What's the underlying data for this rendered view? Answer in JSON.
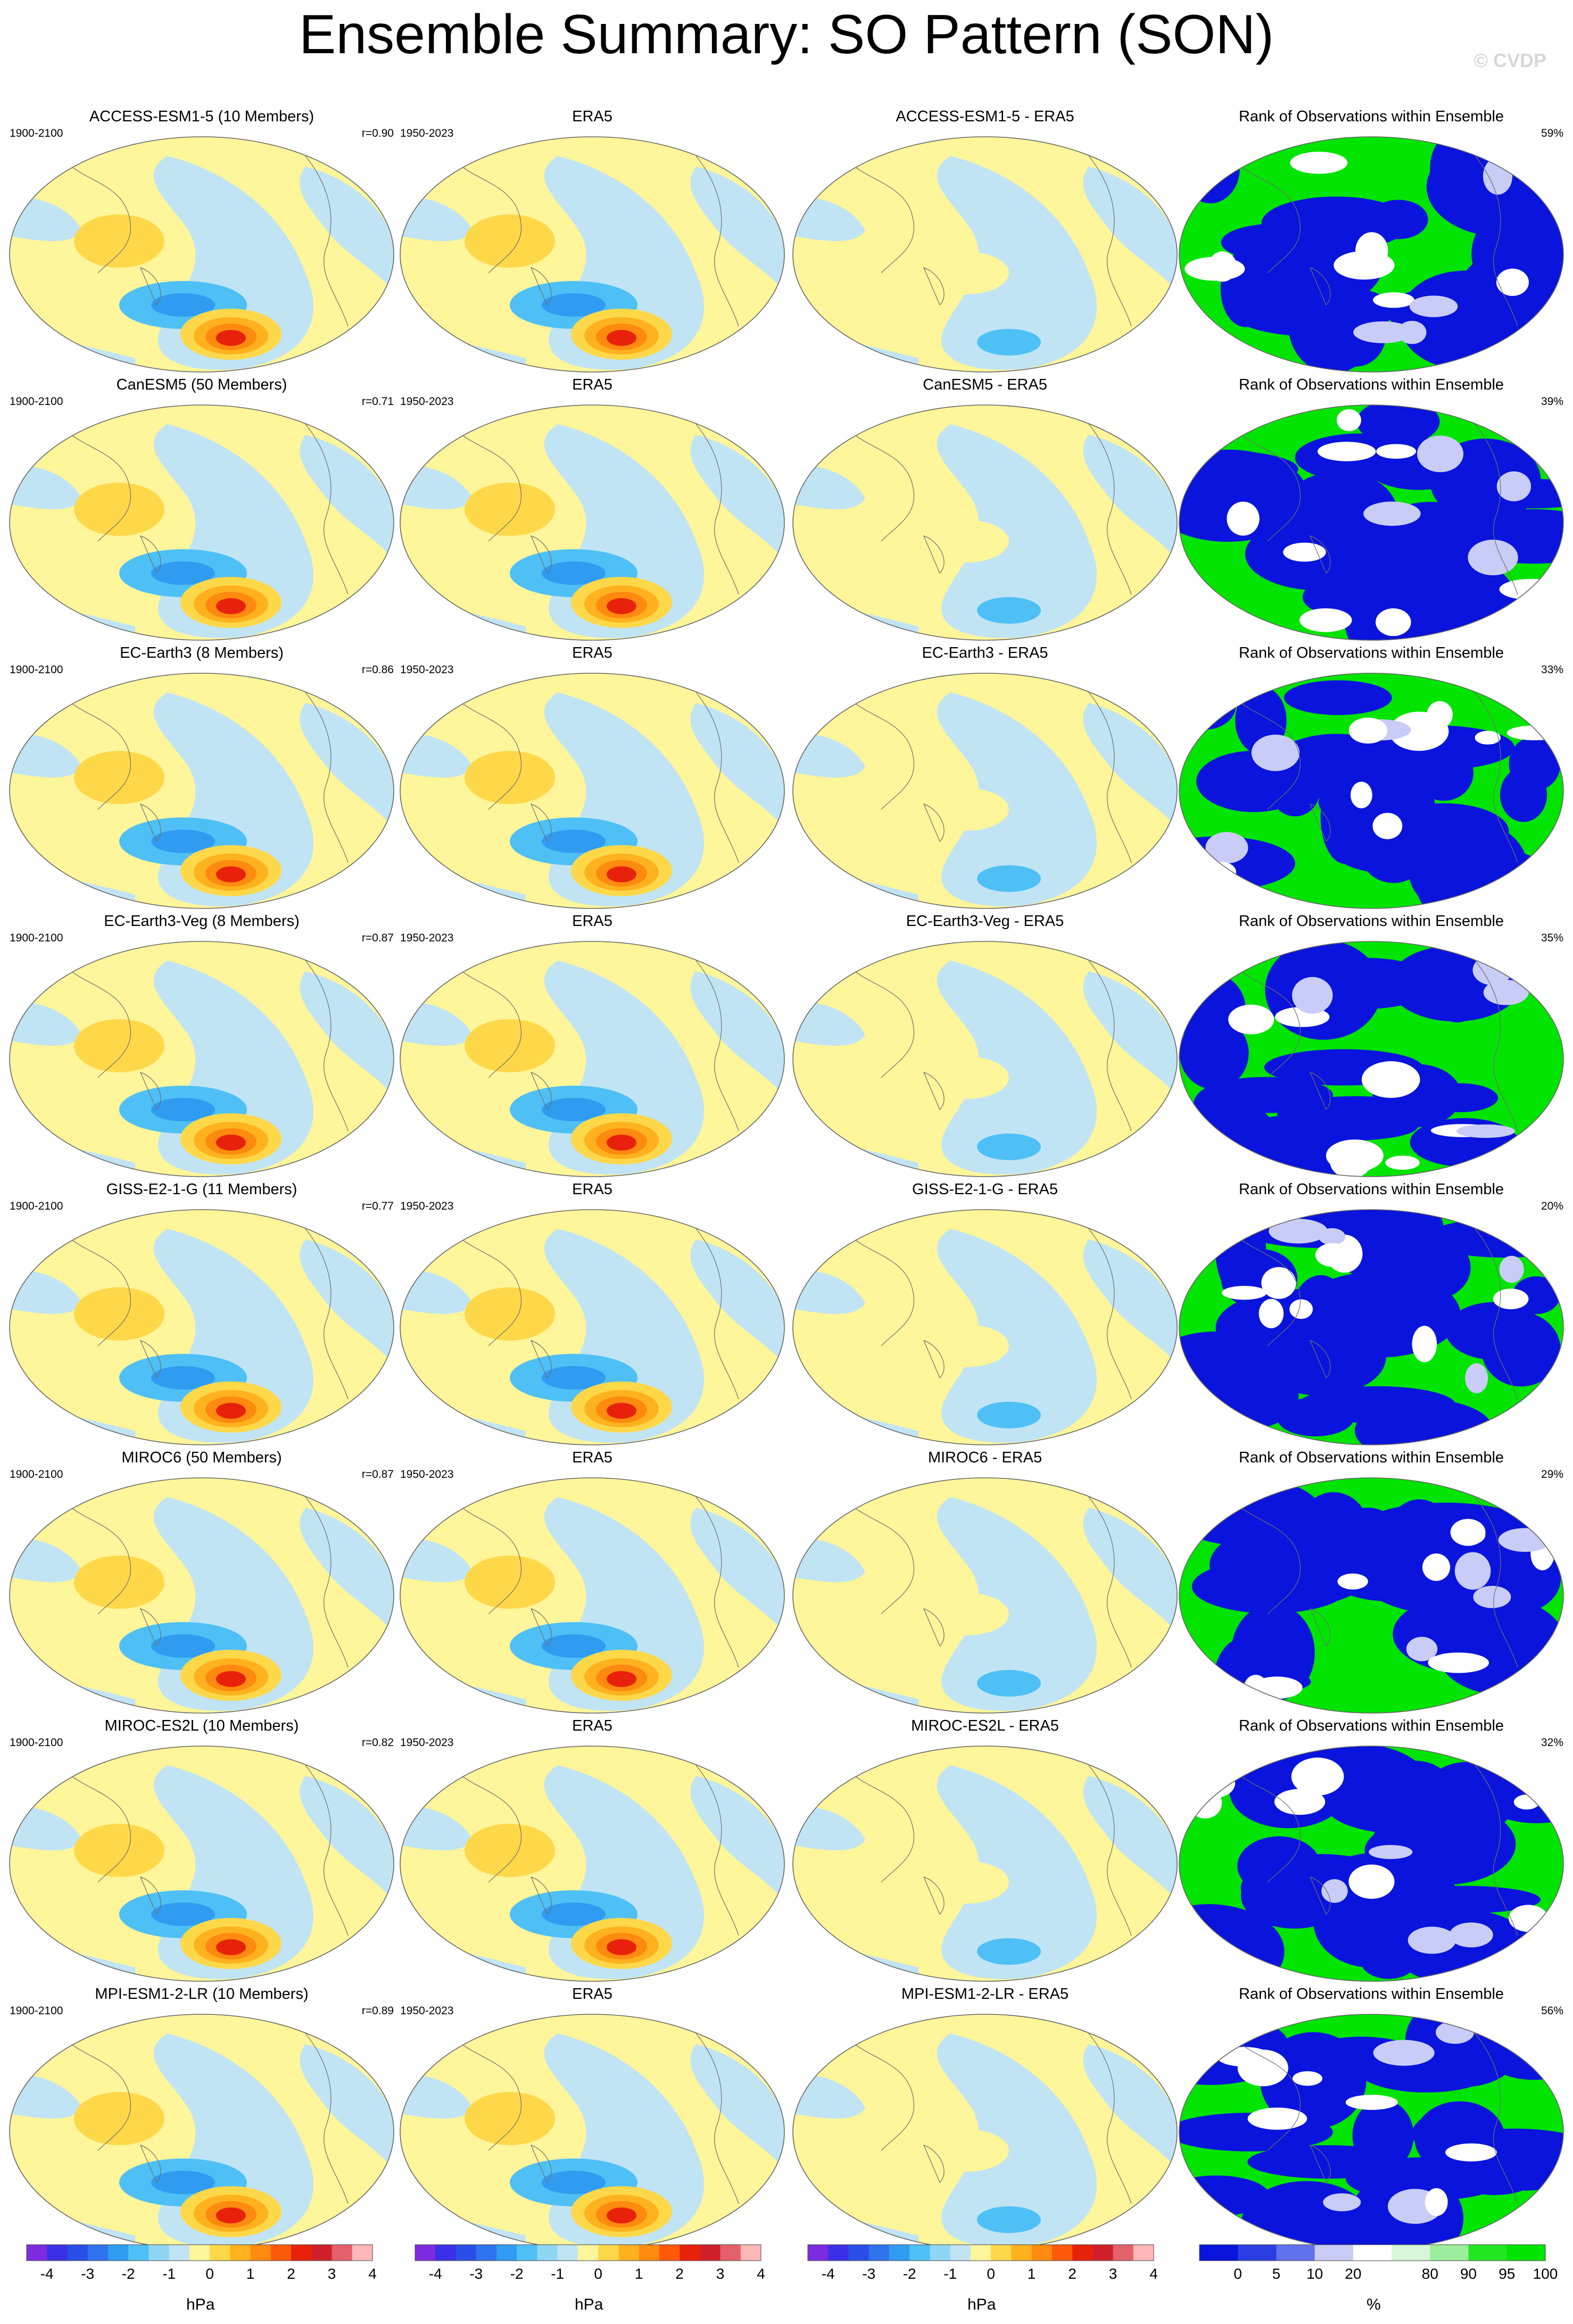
{
  "title": "Ensemble Summary: SO Pattern (SON)",
  "watermark": "© CVDP",
  "obs_label": "ERA5",
  "obs_period": "1950-2023",
  "model_period": "1900-2100",
  "rank_title": "Rank of Observations within Ensemble",
  "rows": [
    {
      "model": "ACCESS-ESM1-5 (10 Members)",
      "diff": "ACCESS-ESM1-5 - ERA5",
      "r": "r=0.90",
      "pct": "59%"
    },
    {
      "model": "CanESM5 (50 Members)",
      "diff": "CanESM5 - ERA5",
      "r": "r=0.71",
      "pct": "39%"
    },
    {
      "model": "EC-Earth3 (8 Members)",
      "diff": "EC-Earth3 - ERA5",
      "r": "r=0.86",
      "pct": "33%"
    },
    {
      "model": "EC-Earth3-Veg (8 Members)",
      "diff": "EC-Earth3-Veg - ERA5",
      "r": "r=0.87",
      "pct": "35%"
    },
    {
      "model": "GISS-E2-1-G (11 Members)",
      "diff": "GISS-E2-1-G - ERA5",
      "r": "r=0.77",
      "pct": "20%"
    },
    {
      "model": "MIROC6 (50 Members)",
      "diff": "MIROC6 - ERA5",
      "r": "r=0.87",
      "pct": "29%"
    },
    {
      "model": "MIROC-ES2L (10 Members)",
      "diff": "MIROC-ES2L - ERA5",
      "r": "r=0.82",
      "pct": "32%"
    },
    {
      "model": "MPI-ESM1-2-LR (10 Members)",
      "diff": "MPI-ESM1-2-LR - ERA5",
      "r": "r=0.89",
      "pct": "56%"
    }
  ],
  "colorbar_hpa": {
    "units": "hPa",
    "labels": [
      "-4",
      "-3",
      "-2",
      "-1",
      "0",
      "1",
      "2",
      "3",
      "4"
    ],
    "colors": [
      "#7d2be0",
      "#3b2fe8",
      "#2a4fe6",
      "#2f74ee",
      "#2f9cf2",
      "#4fc0f5",
      "#8fd6f5",
      "#c0e4f4",
      "#fff59a",
      "#ffd84a",
      "#ffb21e",
      "#ff8a10",
      "#ff5a0a",
      "#e8220a",
      "#d0202a",
      "#e4606a",
      "#ffb8b8"
    ]
  },
  "colorbar_rank": {
    "units": "%",
    "labels": [
      "0",
      "5",
      "10",
      "20",
      "80",
      "90",
      "95",
      "100"
    ],
    "colors": [
      "#0a14dc",
      "#2a3ee4",
      "#6272ec",
      "#c8ccf6",
      "#ffffff",
      "#d8f7d8",
      "#9cee9c",
      "#22e622",
      "#00e400"
    ]
  },
  "chart_data": {
    "type": "heatmap",
    "title": "Ensemble Summary: SO Pattern (SON)",
    "colorbar_units": [
      "hPa",
      "%"
    ],
    "colorbar_ticks_hpa": [
      -4,
      -3,
      -2,
      -1,
      0,
      1,
      2,
      3,
      4
    ],
    "colorbar_ticks_rank": [
      0,
      5,
      10,
      20,
      80,
      90,
      95,
      100
    ],
    "columns": [
      "model",
      "ERA5",
      "model - ERA5",
      "Rank of Observations within Ensemble"
    ],
    "pattern_correlation": [
      0.9,
      0.71,
      0.86,
      0.87,
      0.77,
      0.87,
      0.82,
      0.89
    ],
    "rank_percent": [
      59,
      39,
      33,
      35,
      20,
      29,
      32,
      56
    ]
  }
}
